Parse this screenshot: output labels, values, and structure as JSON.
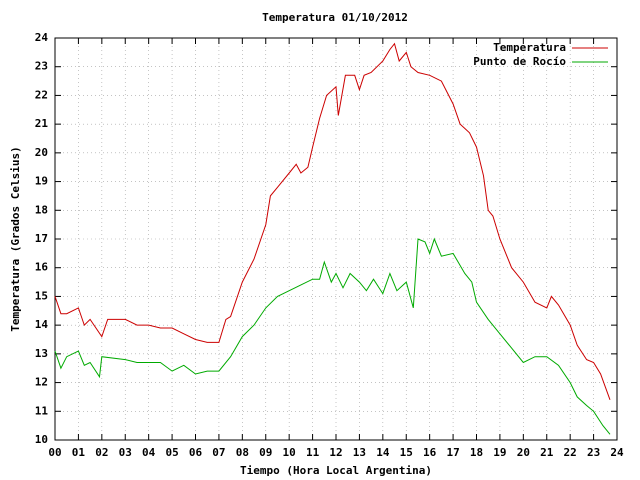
{
  "chart_data": {
    "type": "line",
    "title": "Temperatura 01/10/2012",
    "x_label": "Tiempo (Hora Local Argentina)",
    "y_label": "Temperatura (Grados Celsius)",
    "xlim": [
      0,
      24
    ],
    "ylim": [
      10,
      24
    ],
    "grid": true,
    "legend": "top-right",
    "xticks": [
      {
        "value": 0,
        "label": "00"
      },
      {
        "value": 1,
        "label": "01"
      },
      {
        "value": 2,
        "label": "02"
      },
      {
        "value": 3,
        "label": "03"
      },
      {
        "value": 4,
        "label": "04"
      },
      {
        "value": 5,
        "label": "05"
      },
      {
        "value": 6,
        "label": "06"
      },
      {
        "value": 7,
        "label": "07"
      },
      {
        "value": 8,
        "label": "08"
      },
      {
        "value": 9,
        "label": "09"
      },
      10,
      11,
      12,
      13,
      14,
      15,
      16,
      17,
      18,
      19,
      20,
      21,
      22,
      23,
      24
    ],
    "yticks": [
      10,
      11,
      12,
      13,
      14,
      15,
      16,
      17,
      18,
      19,
      20,
      21,
      22,
      23,
      24
    ],
    "series": [
      {
        "name": "Temperatura",
        "color": "#cc0000",
        "x": [
          0,
          0.25,
          0.5,
          1,
          1.25,
          1.5,
          2,
          2.25,
          3,
          3.5,
          4,
          4.5,
          5,
          5.5,
          6,
          6.5,
          7,
          7.3,
          7.5,
          8,
          8.5,
          9,
          9.2,
          9.5,
          10,
          10.3,
          10.5,
          10.8,
          11,
          11.3,
          11.6,
          12,
          12.1,
          12.4,
          12.8,
          13,
          13.2,
          13.5,
          14,
          14.3,
          14.5,
          14.7,
          15,
          15.2,
          15.5,
          16,
          16.5,
          17,
          17.3,
          17.7,
          18,
          18.3,
          18.5,
          18.7,
          19,
          19.5,
          20,
          20.5,
          21,
          21.2,
          21.5,
          22,
          22.3,
          22.7,
          23,
          23.3,
          23.7
        ],
        "values": [
          15.0,
          14.4,
          14.4,
          14.6,
          14.0,
          14.2,
          13.6,
          14.2,
          14.2,
          14.0,
          14.0,
          13.9,
          13.9,
          13.7,
          13.5,
          13.4,
          13.4,
          14.2,
          14.3,
          15.5,
          16.3,
          17.5,
          18.5,
          18.8,
          19.3,
          19.6,
          19.3,
          19.5,
          20.2,
          21.2,
          22.0,
          22.3,
          21.3,
          22.7,
          22.7,
          22.2,
          22.7,
          22.8,
          23.2,
          23.6,
          23.8,
          23.2,
          23.5,
          23.0,
          22.8,
          22.7,
          22.5,
          21.7,
          21.0,
          20.7,
          20.2,
          19.2,
          18.0,
          17.8,
          17.0,
          16.0,
          15.5,
          14.8,
          14.6,
          15.0,
          14.7,
          14.0,
          13.3,
          12.8,
          12.7,
          12.3,
          11.4
        ]
      },
      {
        "name": "Punto de Rocío",
        "color": "#00aa00",
        "x": [
          0,
          0.25,
          0.5,
          1,
          1.25,
          1.5,
          1.9,
          2,
          3,
          3.5,
          4,
          4.5,
          5,
          5.5,
          6,
          6.5,
          7,
          7.5,
          8,
          8.5,
          9,
          9.5,
          10,
          10.5,
          11,
          11.3,
          11.5,
          11.8,
          12,
          12.3,
          12.6,
          13,
          13.3,
          13.6,
          14,
          14.3,
          14.6,
          15,
          15.3,
          15.5,
          15.8,
          16,
          16.2,
          16.5,
          17,
          17.5,
          17.8,
          18,
          18.5,
          19,
          19.5,
          20,
          20.5,
          21,
          21.5,
          22,
          22.3,
          22.7,
          23,
          23.4,
          23.7
        ],
        "values": [
          13.1,
          12.5,
          12.9,
          13.1,
          12.6,
          12.7,
          12.2,
          12.9,
          12.8,
          12.7,
          12.7,
          12.7,
          12.4,
          12.6,
          12.3,
          12.4,
          12.4,
          12.9,
          13.6,
          14.0,
          14.6,
          15.0,
          15.2,
          15.4,
          15.6,
          15.6,
          16.2,
          15.5,
          15.8,
          15.3,
          15.8,
          15.5,
          15.2,
          15.6,
          15.1,
          15.8,
          15.2,
          15.5,
          14.6,
          17.0,
          16.9,
          16.5,
          17.0,
          16.4,
          16.5,
          15.8,
          15.5,
          14.8,
          14.2,
          13.7,
          13.2,
          12.7,
          12.9,
          12.9,
          12.6,
          12.0,
          11.5,
          11.2,
          11.0,
          10.5,
          10.2
        ]
      }
    ]
  }
}
